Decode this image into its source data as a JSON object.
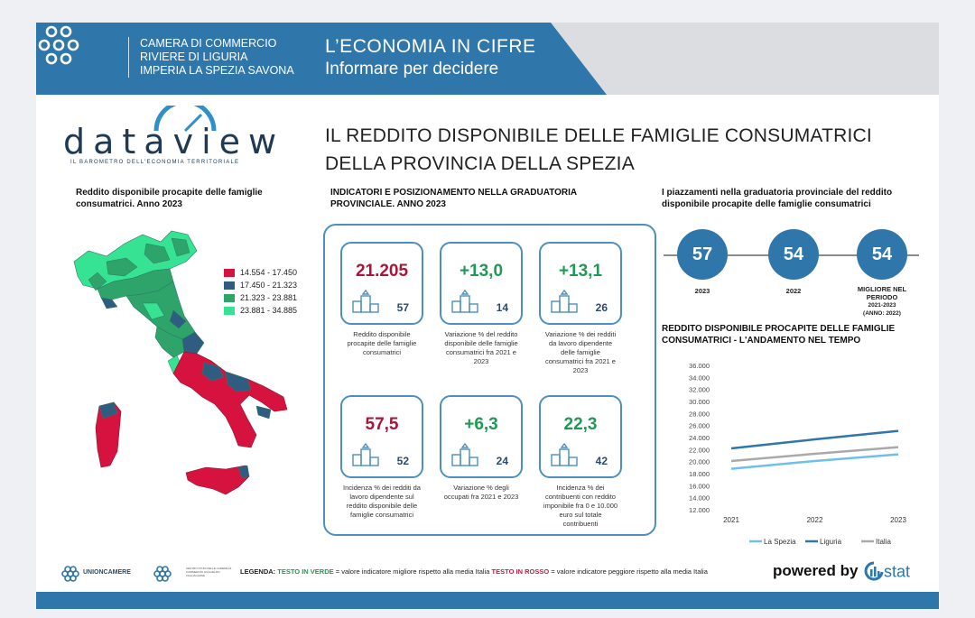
{
  "header": {
    "chamber_line1": "CAMERA DI COMMERCIO",
    "chamber_line2": "RIVIERE DI LIGURIA",
    "chamber_line3": "IMPERIA LA SPEZIA SAVONA",
    "slogan_line1": "L’ECONOMIA  IN  CIFRE",
    "slogan_line2": "Informare per decidere"
  },
  "brand": {
    "wordmark": "dataview",
    "tagline": "IL BAROMETRO DELL'ECONOMIA TERRITORIALE"
  },
  "title": {
    "line1": "IL REDDITO DISPONIBILE DELLE FAMIGLIE CONSUMATRICI",
    "line2": "DELLA PROVINCIA DELLA SPEZIA"
  },
  "map_section": {
    "title_line1": "Reddito disponibile procapite delle famiglie",
    "title_line2": "consumatrici. Anno 2023",
    "legend": [
      {
        "label": "14.554 - 17.450",
        "color": "#d6133f"
      },
      {
        "label": "17.450 - 21.323",
        "color": "#2f5d80"
      },
      {
        "label": "21.323 - 23.881",
        "color": "#2ea36a"
      },
      {
        "label": "23.881 - 34.885",
        "color": "#35e392"
      }
    ]
  },
  "indicators": {
    "title_line1": "INDICATORI E POSIZIONAMENTO NELLA GRADUATORIA",
    "title_line2": "PROVINCIALE. ANNO 2023",
    "cards": [
      {
        "value": "21.205",
        "rank": "57",
        "color": "#a8173b",
        "desc": [
          "Reddito disponibile",
          "procapite delle famiglie",
          "consumatrici"
        ]
      },
      {
        "value": "+13,0",
        "rank": "14",
        "color": "#1f9a55",
        "desc": [
          "Variazione % del reddito",
          "disponibile delle famiglie",
          "consumatrici fra 2021 e",
          "2023"
        ]
      },
      {
        "value": "+13,1",
        "rank": "26",
        "color": "#1f9a55",
        "desc": [
          "Variazione % dei redditi",
          "da lavoro dipendente",
          "delle famiglie",
          "consumatrici fra 2021 e",
          "2023"
        ]
      },
      {
        "value": "57,5",
        "rank": "52",
        "color": "#a8173b",
        "desc": [
          "Incidenza % dei redditi da",
          "lavoro dipendente sul",
          "reddito disponibile delle",
          "famiglie consumatrici"
        ]
      },
      {
        "value": "+6,3",
        "rank": "24",
        "color": "#1f9a55",
        "desc": [
          "Variazione % degli",
          "occupati fra 2021 e 2023"
        ]
      },
      {
        "value": "22,3",
        "rank": "42",
        "color": "#1f9a55",
        "desc": [
          "Incidenza % dei",
          "contribuenti con reddito",
          "imponibile fra 0 e 10.000",
          "euro sul totale",
          "contribuenti"
        ]
      }
    ]
  },
  "ranking": {
    "title_line1": "I piazzamenti nella graduatoria provinciale del reddito",
    "title_line2": "disponibile procapite delle famiglie consumatrici",
    "items": [
      {
        "value": "57",
        "label": [
          "2023"
        ]
      },
      {
        "value": "54",
        "label": [
          "2022"
        ]
      },
      {
        "value": "54",
        "label": [
          "MIGLIORE NEL",
          "PERIODO",
          "2021-2023",
          "(ANNO: 2022)"
        ]
      }
    ]
  },
  "chart_data": {
    "type": "line",
    "title": "REDDITO DISPONIBILE PROCAPITE DELLE FAMIGLIE CONSUMATRICI - L'ANDAMENTO NEL TEMPO",
    "title_line1": "REDDITO DISPONIBILE PROCAPITE DELLE FAMIGLIE",
    "title_line2": "CONSUMATRICI - L'ANDAMENTO NEL TEMPO",
    "x": [
      "2021",
      "2022",
      "2023"
    ],
    "ylim": [
      12000,
      36000
    ],
    "yticks": [
      12000,
      14000,
      16000,
      18000,
      20000,
      22000,
      24000,
      26000,
      28000,
      30000,
      32000,
      34000,
      36000
    ],
    "ytick_labels": [
      "12.000",
      "14.000",
      "16.000",
      "18.000",
      "20.000",
      "22.000",
      "24.000",
      "26.000",
      "28.000",
      "30.000",
      "32.000",
      "34.000",
      "36.000"
    ],
    "series": [
      {
        "name": "La Spezia",
        "values": [
          18800,
          20100,
          21205
        ],
        "color": "#6cc0ea"
      },
      {
        "name": "Liguria",
        "values": [
          22200,
          23700,
          25100
        ],
        "color": "#2f76aa"
      },
      {
        "name": "Italia",
        "values": [
          20100,
          21300,
          22400
        ],
        "color": "#a9a9a9"
      }
    ]
  },
  "footer": {
    "unioncamere": "UNIONCAMERE",
    "centro_studi": "CENTRO STUDI DELLE CAMERE DI COMMERCIO GUGLIELMO TAGLIACARNE",
    "legenda_label": "LEGENDA:",
    "green_text": "TESTO IN VERDE",
    "green_desc": " = valore indicatore migliore rispetto alla media Italia ",
    "red_text": "TESTO IN ROSSO",
    "red_desc": " = valore indicatore peggiore rispetto alla media Italia",
    "powered": "powered by",
    "istat": "stat"
  }
}
